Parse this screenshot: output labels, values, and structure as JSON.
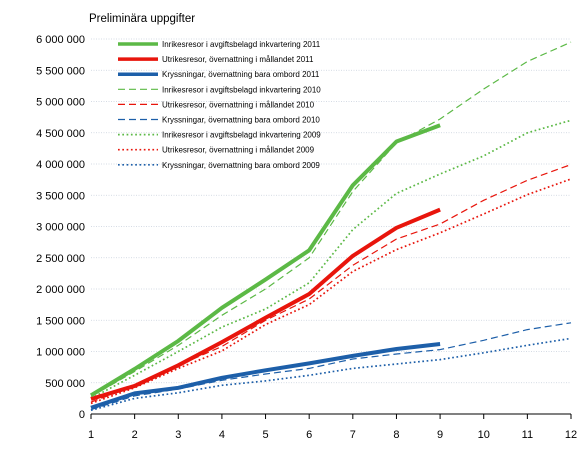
{
  "chart_data": {
    "type": "line",
    "subtitle": "Preliminära uppgifter",
    "x": [
      1,
      2,
      3,
      4,
      5,
      6,
      7,
      8,
      9,
      10,
      11,
      12
    ],
    "ylim": [
      0,
      6000000
    ],
    "yticks": [
      0,
      500000,
      1000000,
      1500000,
      2000000,
      2500000,
      3000000,
      3500000,
      4000000,
      4500000,
      5000000,
      5500000,
      6000000
    ],
    "ytick_labels": [
      "0",
      "500 000",
      "1 000 000",
      "1 500 000",
      "2 000 000",
      "2 500 000",
      "3 000 000",
      "3 500 000",
      "4 000 000",
      "4 500 000",
      "5 000 000",
      "5 500 000",
      "6 000 000"
    ],
    "xtick_labels": [
      "1",
      "2",
      "3",
      "4",
      "5",
      "6",
      "7",
      "8",
      "9",
      "10",
      "11",
      "12"
    ],
    "grid": "horizontal",
    "legend_position": "top-left",
    "series": [
      {
        "name": "Inrikesresor i avgiftsbelagd inkvartering 2011",
        "color": "#5cb946",
        "style": "solid",
        "values": [
          300000,
          720000,
          1170000,
          1700000,
          2150000,
          2620000,
          3660000,
          4360000,
          4620000,
          null,
          null,
          null
        ]
      },
      {
        "name": "Utrikesresor, övernattning i mållandet 2011",
        "color": "#e8150c",
        "style": "solid",
        "values": [
          240000,
          450000,
          780000,
          1150000,
          1540000,
          1920000,
          2530000,
          2980000,
          3270000,
          null,
          null,
          null
        ]
      },
      {
        "name": "Kryssningar, övernattning bara ombord 2011",
        "color": "#1d5fa9",
        "style": "solid",
        "values": [
          100000,
          330000,
          420000,
          580000,
          700000,
          810000,
          930000,
          1040000,
          1120000,
          null,
          null,
          null
        ]
      },
      {
        "name": "Inrikesresor i avgiftsbelagd inkvartering 2010",
        "color": "#5cb946",
        "style": "dashed",
        "values": [
          280000,
          680000,
          1100000,
          1580000,
          2000000,
          2500000,
          3560000,
          4340000,
          4720000,
          5200000,
          5640000,
          5950000
        ]
      },
      {
        "name": "Utrikesresor, övernattning i mållandet 2010",
        "color": "#e8150c",
        "style": "dashed",
        "values": [
          190000,
          450000,
          780000,
          1080000,
          1500000,
          1840000,
          2380000,
          2800000,
          3040000,
          3420000,
          3740000,
          3990000
        ]
      },
      {
        "name": "Kryssningar, övernattning bara ombord 2010",
        "color": "#1d5fa9",
        "style": "dashed",
        "values": [
          70000,
          290000,
          400000,
          540000,
          640000,
          730000,
          880000,
          960000,
          1030000,
          1180000,
          1350000,
          1460000
        ]
      },
      {
        "name": "Inrikesresor i avgiftsbelagd inkvartering 2009",
        "color": "#5cb946",
        "style": "dotted",
        "values": [
          250000,
          620000,
          1000000,
          1390000,
          1680000,
          2100000,
          2950000,
          3530000,
          3840000,
          4130000,
          4500000,
          4700000
        ]
      },
      {
        "name": "Utrikesresor, övernattning i mållandet 2009",
        "color": "#e8150c",
        "style": "dotted",
        "values": [
          170000,
          420000,
          730000,
          1010000,
          1430000,
          1750000,
          2280000,
          2630000,
          2900000,
          3200000,
          3510000,
          3760000
        ]
      },
      {
        "name": "Kryssningar, övernattning bara ombord 2009",
        "color": "#1d5fa9",
        "style": "dotted",
        "values": [
          60000,
          250000,
          340000,
          460000,
          530000,
          620000,
          730000,
          800000,
          870000,
          980000,
          1100000,
          1210000
        ]
      }
    ]
  }
}
